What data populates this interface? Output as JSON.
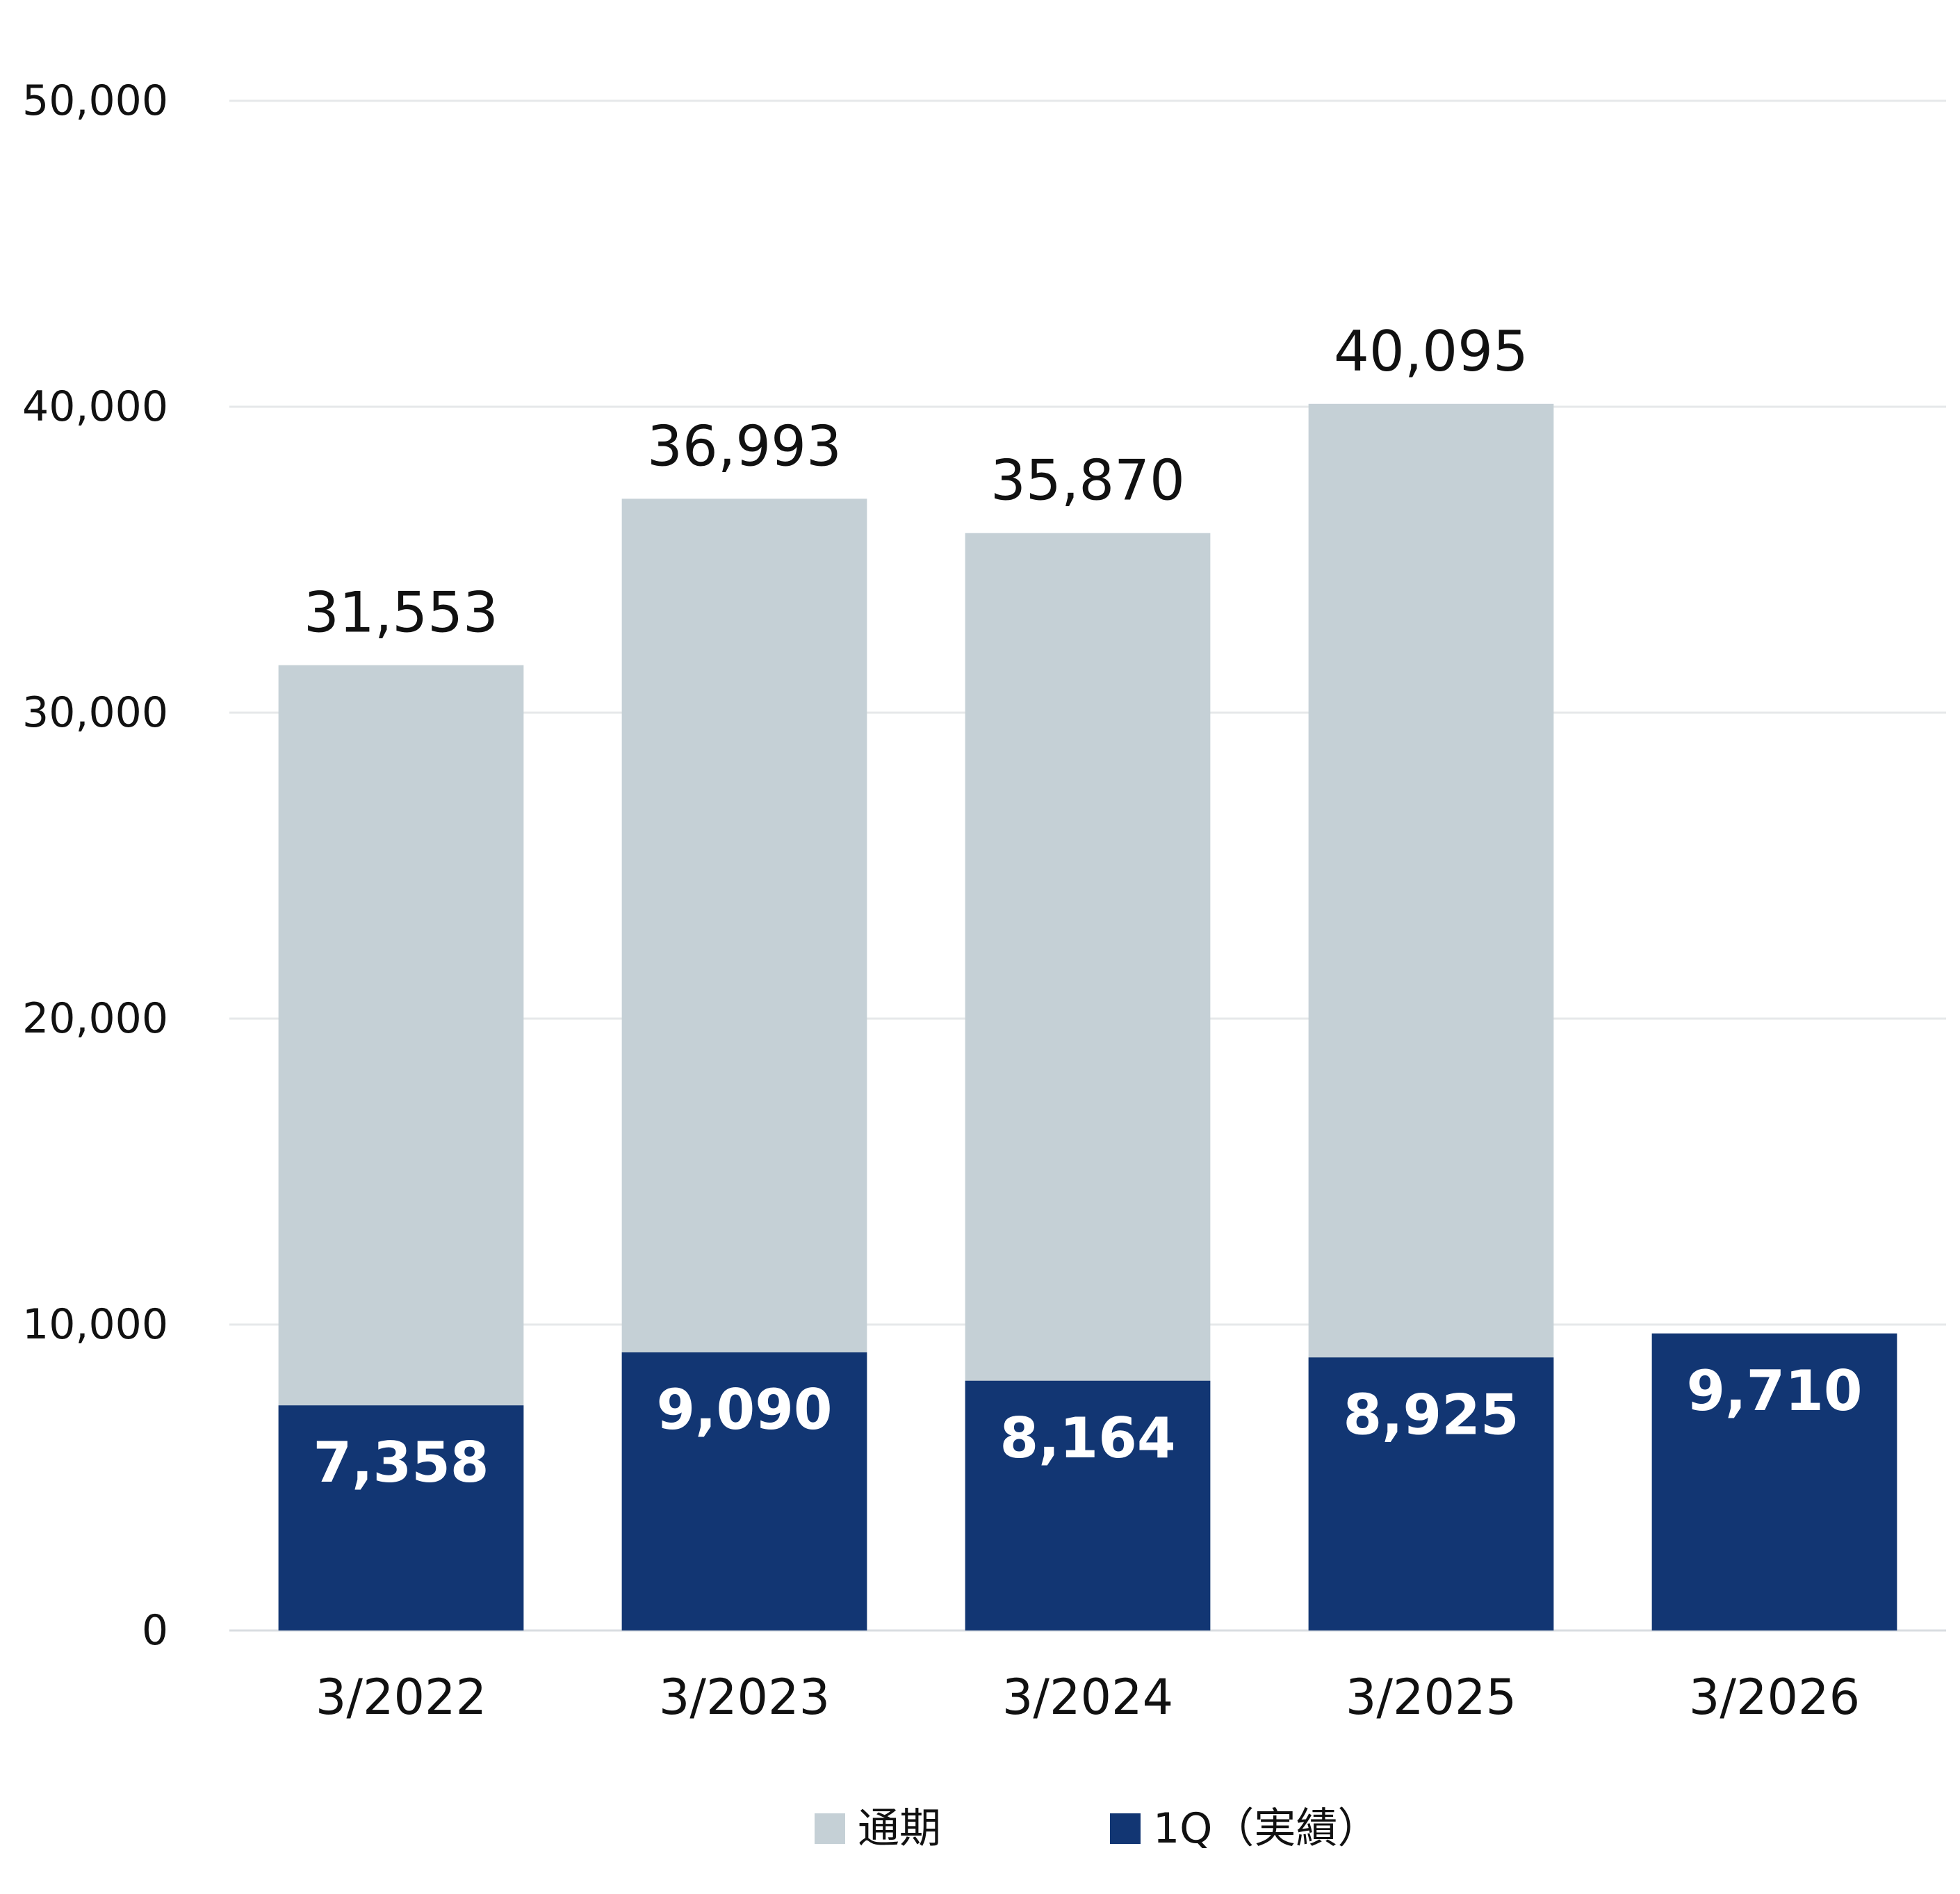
{
  "chart_data": {
    "type": "bar",
    "categories": [
      "3/2022",
      "3/2023",
      "3/2024",
      "3/2025",
      "3/2026"
    ],
    "series": [
      {
        "name": "通期",
        "values": [
          31553,
          36993,
          35870,
          40095,
          null
        ],
        "labels": [
          "31,553",
          "36,993",
          "35,870",
          "40,095",
          ""
        ],
        "color": "#c5d0d6"
      },
      {
        "name": "1Q（実績）",
        "values": [
          7358,
          9090,
          8164,
          8925,
          9710
        ],
        "labels": [
          "7,358",
          "9,090",
          "8,164",
          "8,925",
          "9,710"
        ],
        "color": "#123673"
      }
    ],
    "y_ticks": [
      {
        "value": 0,
        "label": "0"
      },
      {
        "value": 10000,
        "label": "10,000"
      },
      {
        "value": 20000,
        "label": "20,000"
      },
      {
        "value": 30000,
        "label": "30,000"
      },
      {
        "value": 40000,
        "label": "40,000"
      },
      {
        "value": 50000,
        "label": "50,000"
      }
    ],
    "ylim": [
      0,
      50000
    ],
    "grid": true,
    "legend_position": "bottom",
    "overlapping_bars": true
  }
}
